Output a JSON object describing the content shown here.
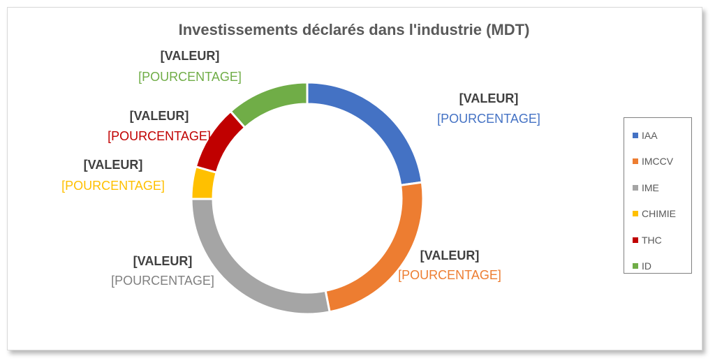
{
  "chart_data": {
    "type": "pie",
    "title": "Investissements déclarés dans l'industrie (MDT)",
    "categories": [
      "IAA",
      "IMCCV",
      "IME",
      "CHIMIE",
      "THC",
      "ID"
    ],
    "values": [
      22.8,
      24.1,
      28.0,
      4.5,
      9.1,
      11.5
    ],
    "colors": [
      "#4472c4",
      "#ed7d31",
      "#a5a5a5",
      "#ffc000",
      "#c00000",
      "#70ad47"
    ],
    "data_labels": [
      {
        "value": "[VALEUR]",
        "percent": "[POURCENTAGE]"
      },
      {
        "value": "[VALEUR]",
        "percent": "[POURCENTAGE]"
      },
      {
        "value": "[VALEUR]",
        "percent": "[POURCENTAGE]"
      },
      {
        "value": "[VALEUR]",
        "percent": "[POURCENTAGE]"
      },
      {
        "value": "[VALEUR]",
        "percent": "[POURCENTAGE]"
      },
      {
        "value": "[VALEUR]",
        "percent": "[POURCENTAGE]"
      }
    ],
    "legend_position": "right",
    "hole": "donut"
  }
}
